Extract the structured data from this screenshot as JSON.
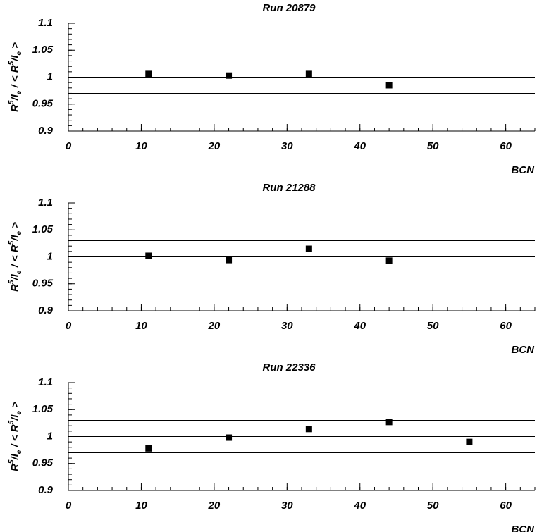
{
  "chart_data": [
    {
      "type": "scatter",
      "title": "Run 20879",
      "xlabel": "BCN",
      "ylabel": [
        "R",
        "5",
        "/I",
        "e",
        " / < R",
        "5",
        "/I",
        "e",
        " >"
      ],
      "x": [
        11,
        22,
        33,
        44
      ],
      "y": [
        1.006,
        1.003,
        1.006,
        0.985
      ],
      "color": "#000000",
      "hlines": [
        0.97,
        1,
        1.03
      ],
      "xlim": [
        0,
        64
      ],
      "ylim": [
        0.9,
        1.1
      ],
      "xticks": [
        0,
        10,
        20,
        30,
        40,
        50,
        60
      ],
      "yticks": [
        0.9,
        0.95,
        1,
        1.05,
        1.1
      ]
    },
    {
      "type": "scatter",
      "title": "Run 21288",
      "xlabel": "BCN",
      "ylabel": [
        "R",
        "5",
        "/I",
        "e",
        " / < R",
        "5",
        "/I",
        "e",
        " >"
      ],
      "x": [
        11,
        22,
        33,
        44
      ],
      "y": [
        1.002,
        0.994,
        1.015,
        0.993
      ],
      "color": "#000000",
      "hlines": [
        0.97,
        1,
        1.03
      ],
      "xlim": [
        0,
        64
      ],
      "ylim": [
        0.9,
        1.1
      ],
      "xticks": [
        0,
        10,
        20,
        30,
        40,
        50,
        60
      ],
      "yticks": [
        0.9,
        0.95,
        1,
        1.05,
        1.1
      ]
    },
    {
      "type": "scatter",
      "title": "Run 22336",
      "xlabel": "BCN",
      "ylabel": [
        "R",
        "5",
        "/I",
        "e",
        " / < R",
        "5",
        "/I",
        "e",
        " >"
      ],
      "x": [
        11,
        22,
        33,
        44,
        55
      ],
      "y": [
        0.978,
        0.998,
        1.014,
        1.027,
        0.99
      ],
      "color": "#000000",
      "hlines": [
        0.97,
        1,
        1.03
      ],
      "xlim": [
        0,
        64
      ],
      "ylim": [
        0.9,
        1.1
      ],
      "xticks": [
        0,
        10,
        20,
        30,
        40,
        50,
        60
      ],
      "yticks": [
        0.9,
        0.95,
        1,
        1.05,
        1.1
      ]
    }
  ]
}
